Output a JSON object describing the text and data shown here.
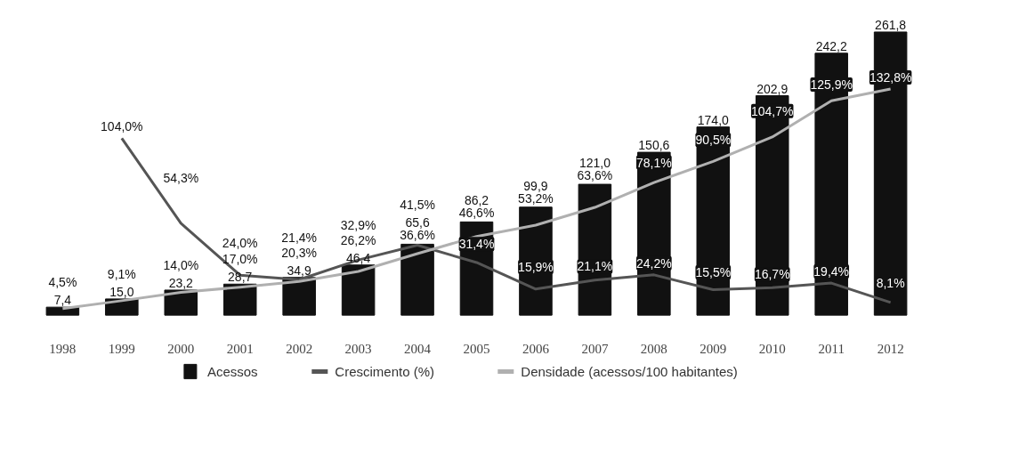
{
  "chart_data": {
    "type": "bar",
    "categories": [
      "1998",
      "1999",
      "2000",
      "2001",
      "2002",
      "2003",
      "2004",
      "2005",
      "2006",
      "2007",
      "2008",
      "2009",
      "2010",
      "2011",
      "2012"
    ],
    "tick_labels": "x",
    "grid": false,
    "legend": "bottom",
    "marker": "none",
    "line_style": "solid",
    "series": [
      {
        "name": "Acessos",
        "color": "#111111",
        "values": [
          7.4,
          15.0,
          23.2,
          28.7,
          34.9,
          46.4,
          65.6,
          86.2,
          99.9,
          121.0,
          150.6,
          174.0,
          202.9,
          242.2,
          261.8
        ],
        "value_labels": [
          "7,4",
          "15,0",
          "23,2",
          "28,7",
          "34,9",
          "46,4",
          "65,6",
          "86,2",
          "99,9",
          "121,0",
          "150,6",
          "174,0",
          "202,9",
          "242,2",
          "261,8"
        ]
      },
      {
        "name": "Crescimento (%)",
        "type": "line",
        "axis": "y2",
        "color": "#555555",
        "values": [
          null,
          104.0,
          54.3,
          24.0,
          21.4,
          32.9,
          41.5,
          31.4,
          15.9,
          21.1,
          24.2,
          15.5,
          16.7,
          19.4,
          8.1
        ],
        "value_labels": [
          null,
          "104,0%",
          "54,3%",
          "24,0%",
          "21,4%",
          "32,9%",
          "41,5%",
          "31,4%",
          "15,9%",
          "21,1%",
          "24,2%",
          "15,5%",
          "16,7%",
          "19,4%",
          "8,1%"
        ]
      },
      {
        "name": "Densidade (acessos/100 habitantes)",
        "type": "line",
        "axis": "y2",
        "color": "#b0b0b0",
        "values": [
          4.5,
          9.1,
          14.0,
          17.0,
          20.3,
          26.2,
          36.6,
          46.6,
          53.2,
          63.6,
          78.1,
          90.5,
          104.7,
          125.9,
          132.8
        ],
        "value_labels": [
          "4,5%",
          "9,1%",
          "14,0%",
          "17,0%",
          "20,3%",
          "26,2%",
          "36,6%",
          "46,6%",
          "53,2%",
          "63,6%",
          "78,1%",
          "90,5%",
          "104,7%",
          "125,9%",
          "132,8%"
        ]
      }
    ]
  }
}
